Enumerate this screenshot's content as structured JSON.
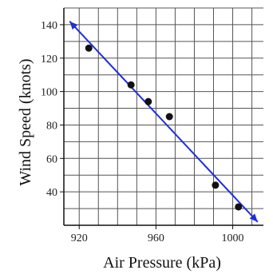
{
  "chart_data": {
    "type": "scatter",
    "title": "",
    "xlabel": "Air Pressure (kPa)",
    "ylabel": "Wind Speed (knots)",
    "xlim": [
      912,
      1016
    ],
    "ylim": [
      20,
      150
    ],
    "grid": true,
    "x_ticks": [
      920,
      960,
      1000
    ],
    "x_tick_labels": [
      "920",
      "960",
      "1000"
    ],
    "y_ticks": [
      40,
      60,
      80,
      100,
      120,
      140
    ],
    "y_tick_labels": [
      "40",
      "60",
      "80",
      "100",
      "120",
      "140"
    ],
    "points": [
      {
        "x": 925,
        "y": 126
      },
      {
        "x": 947,
        "y": 104
      },
      {
        "x": 956,
        "y": 94
      },
      {
        "x": 967,
        "y": 85
      },
      {
        "x": 991,
        "y": 44
      },
      {
        "x": 1003,
        "y": 31
      }
    ],
    "trend_line": {
      "x": [
        915,
        1013
      ],
      "y": [
        142,
        22
      ]
    },
    "colors": {
      "points": "#111111",
      "trend_line": "#1f2fd6",
      "grid": "#555555"
    }
  }
}
